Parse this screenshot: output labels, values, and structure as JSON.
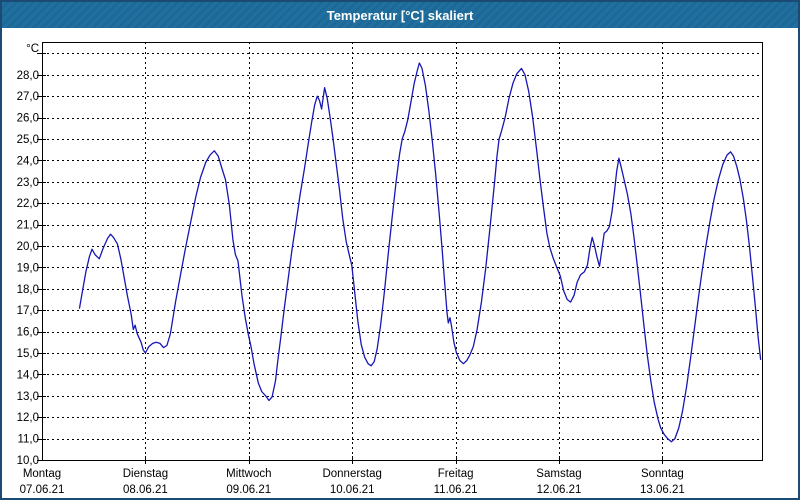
{
  "window": {
    "title": "Temperatur [°C] skaliert",
    "colors": {
      "title_bar": "#1e6b9d",
      "window_border": "#1b4a72",
      "background": "#ffffff",
      "grid": "#000000",
      "series_line": "#1717b5",
      "title_text": "#ffffff"
    }
  },
  "chart_data": {
    "type": "line",
    "title": "Temperatur [°C] skaliert",
    "ylabel": "°C",
    "ylim": [
      10,
      29.5
    ],
    "y_tick_step": 1.0,
    "y_tick_labels": [
      "28,0",
      "27,0",
      "26,0",
      "25,0",
      "24,0",
      "23,0",
      "22,0",
      "21,0",
      "20,0",
      "19,0",
      "18,0",
      "17,0",
      "16,0",
      "15,0",
      "14,0",
      "13,0",
      "12,0",
      "11,0",
      "10,0"
    ],
    "y_unlabeled_gridline": 29.0,
    "grid": "dashed",
    "legend_position": "none",
    "x_axis": {
      "days": [
        {
          "name": "Montag",
          "date": "07.06.21"
        },
        {
          "name": "Dienstag",
          "date": "08.06.21"
        },
        {
          "name": "Mittwoch",
          "date": "09.06.21"
        },
        {
          "name": "Donnerstag",
          "date": "10.06.21"
        },
        {
          "name": "Freitag",
          "date": "11.06.21"
        },
        {
          "name": "Samstag",
          "date": "12.06.21"
        },
        {
          "name": "Sonntag",
          "date": "13.06.21"
        }
      ]
    },
    "series": [
      {
        "name": "Temperatur",
        "color": "#1717b5",
        "points_day_hour_temp": [
          [
            0,
            8.7,
            17.1
          ],
          [
            0,
            9.4,
            17.9
          ],
          [
            0,
            10.2,
            18.8
          ],
          [
            0,
            11.0,
            19.5
          ],
          [
            0,
            11.6,
            19.85
          ],
          [
            0,
            12.3,
            19.6
          ],
          [
            0,
            13.3,
            19.4
          ],
          [
            0,
            14.2,
            19.9
          ],
          [
            0,
            15.2,
            20.35
          ],
          [
            0,
            15.9,
            20.55
          ],
          [
            0,
            16.6,
            20.4
          ],
          [
            0,
            17.5,
            20.1
          ],
          [
            0,
            18.3,
            19.4
          ],
          [
            0,
            19.0,
            18.6
          ],
          [
            0,
            19.8,
            17.7
          ],
          [
            0,
            20.7,
            16.8
          ],
          [
            0,
            21.2,
            16.1
          ],
          [
            0,
            21.6,
            16.3
          ],
          [
            0,
            22.1,
            15.9
          ],
          [
            0,
            23.0,
            15.5
          ],
          [
            0,
            23.5,
            15.15
          ],
          [
            1,
            0,
            15.0
          ],
          [
            1,
            0.8,
            15.3
          ],
          [
            1,
            1.7,
            15.45
          ],
          [
            1,
            2.5,
            15.5
          ],
          [
            1,
            3.4,
            15.45
          ],
          [
            1,
            4.2,
            15.25
          ],
          [
            1,
            5.0,
            15.35
          ],
          [
            1,
            5.8,
            15.9
          ],
          [
            1,
            7.0,
            17.4
          ],
          [
            1,
            8.2,
            18.7
          ],
          [
            1,
            9.3,
            19.9
          ],
          [
            1,
            10.5,
            21.1
          ],
          [
            1,
            11.7,
            22.3
          ],
          [
            1,
            12.8,
            23.2
          ],
          [
            1,
            14.0,
            23.9
          ],
          [
            1,
            15.0,
            24.25
          ],
          [
            1,
            16.0,
            24.45
          ],
          [
            1,
            16.9,
            24.2
          ],
          [
            1,
            17.8,
            23.6
          ],
          [
            1,
            18.6,
            23.1
          ],
          [
            1,
            19.5,
            21.9
          ],
          [
            1,
            20.3,
            20.3
          ],
          [
            1,
            20.9,
            19.6
          ],
          [
            1,
            21.5,
            19.3
          ],
          [
            1,
            22.4,
            17.7
          ],
          [
            1,
            23.2,
            16.6
          ],
          [
            1,
            23.9,
            15.85
          ],
          [
            2,
            0.5,
            15.3
          ],
          [
            2,
            1.2,
            14.5
          ],
          [
            2,
            2.2,
            13.6
          ],
          [
            2,
            3.0,
            13.2
          ],
          [
            2,
            3.9,
            13.0
          ],
          [
            2,
            4.7,
            12.78
          ],
          [
            2,
            5.4,
            12.95
          ],
          [
            2,
            6.2,
            13.7
          ],
          [
            2,
            6.7,
            14.6
          ],
          [
            2,
            7.4,
            15.7
          ],
          [
            2,
            8.3,
            17.2
          ],
          [
            2,
            9.1,
            18.4
          ],
          [
            2,
            10.0,
            19.8
          ],
          [
            2,
            10.9,
            21.0
          ],
          [
            2,
            11.9,
            22.4
          ],
          [
            2,
            12.9,
            23.6
          ],
          [
            2,
            13.8,
            24.8
          ],
          [
            2,
            14.6,
            25.8
          ],
          [
            2,
            15.3,
            26.6
          ],
          [
            2,
            15.9,
            27.0
          ],
          [
            2,
            16.4,
            26.8
          ],
          [
            2,
            16.9,
            26.4
          ],
          [
            2,
            17.6,
            27.4
          ],
          [
            2,
            18.2,
            26.9
          ],
          [
            2,
            18.8,
            26.1
          ],
          [
            2,
            19.5,
            25.1
          ],
          [
            2,
            20.2,
            24.0
          ],
          [
            2,
            21.0,
            22.7
          ],
          [
            2,
            21.8,
            21.3
          ],
          [
            2,
            22.6,
            20.2
          ],
          [
            2,
            23.3,
            19.6
          ],
          [
            2,
            23.9,
            19.1
          ],
          [
            3,
            0.6,
            17.8
          ],
          [
            3,
            1.3,
            16.5
          ],
          [
            3,
            2.1,
            15.4
          ],
          [
            3,
            2.9,
            14.8
          ],
          [
            3,
            3.7,
            14.5
          ],
          [
            3,
            4.4,
            14.4
          ],
          [
            3,
            5.1,
            14.6
          ],
          [
            3,
            5.8,
            15.2
          ],
          [
            3,
            6.6,
            16.3
          ],
          [
            3,
            7.5,
            17.9
          ],
          [
            3,
            8.4,
            19.7
          ],
          [
            3,
            9.3,
            21.4
          ],
          [
            3,
            10.2,
            23.0
          ],
          [
            3,
            11.0,
            24.3
          ],
          [
            3,
            11.6,
            25.0
          ],
          [
            3,
            12.2,
            25.35
          ],
          [
            3,
            12.9,
            25.9
          ],
          [
            3,
            13.7,
            26.8
          ],
          [
            3,
            14.4,
            27.6
          ],
          [
            3,
            15.1,
            28.2
          ],
          [
            3,
            15.6,
            28.55
          ],
          [
            3,
            16.2,
            28.3
          ],
          [
            3,
            17.0,
            27.5
          ],
          [
            3,
            17.8,
            26.3
          ],
          [
            3,
            18.6,
            24.9
          ],
          [
            3,
            19.4,
            23.3
          ],
          [
            3,
            20.2,
            21.5
          ],
          [
            3,
            20.9,
            19.8
          ],
          [
            3,
            21.5,
            18.2
          ],
          [
            3,
            22.0,
            16.9
          ],
          [
            3,
            22.3,
            16.4
          ],
          [
            3,
            22.7,
            16.65
          ],
          [
            3,
            23.1,
            16.2
          ],
          [
            3,
            23.6,
            15.5
          ],
          [
            4,
            0.2,
            15.0
          ],
          [
            4,
            1.0,
            14.65
          ],
          [
            4,
            1.8,
            14.5
          ],
          [
            4,
            2.6,
            14.65
          ],
          [
            4,
            3.3,
            14.9
          ],
          [
            4,
            4.1,
            15.3
          ],
          [
            4,
            5.0,
            16.1
          ],
          [
            4,
            6.0,
            17.4
          ],
          [
            4,
            7.0,
            19.0
          ],
          [
            4,
            8.0,
            20.9
          ],
          [
            4,
            9.0,
            22.9
          ],
          [
            4,
            9.6,
            24.2
          ],
          [
            4,
            10.1,
            25.0
          ],
          [
            4,
            10.7,
            25.4
          ],
          [
            4,
            11.5,
            26.0
          ],
          [
            4,
            12.4,
            26.9
          ],
          [
            4,
            13.3,
            27.6
          ],
          [
            4,
            14.2,
            28.05
          ],
          [
            4,
            15.3,
            28.3
          ],
          [
            4,
            16.1,
            28.0
          ],
          [
            4,
            17.0,
            27.2
          ],
          [
            4,
            17.9,
            26.0
          ],
          [
            4,
            18.8,
            24.5
          ],
          [
            4,
            19.6,
            23.1
          ],
          [
            4,
            20.4,
            21.8
          ],
          [
            4,
            21.2,
            20.6
          ],
          [
            4,
            21.9,
            19.9
          ],
          [
            4,
            22.7,
            19.4
          ],
          [
            4,
            23.5,
            19.0
          ],
          [
            5,
            0.3,
            18.6
          ],
          [
            5,
            1.1,
            17.9
          ],
          [
            5,
            1.9,
            17.5
          ],
          [
            5,
            2.7,
            17.38
          ],
          [
            5,
            3.5,
            17.7
          ],
          [
            5,
            4.2,
            18.3
          ],
          [
            5,
            5.0,
            18.65
          ],
          [
            5,
            5.9,
            18.8
          ],
          [
            5,
            6.6,
            19.1
          ],
          [
            5,
            7.2,
            19.9
          ],
          [
            5,
            7.7,
            20.4
          ],
          [
            5,
            8.2,
            20.05
          ],
          [
            5,
            8.8,
            19.5
          ],
          [
            5,
            9.4,
            19.05
          ],
          [
            5,
            10.0,
            19.9
          ],
          [
            5,
            10.5,
            20.6
          ],
          [
            5,
            11.1,
            20.7
          ],
          [
            5,
            11.7,
            20.9
          ],
          [
            5,
            12.3,
            21.6
          ],
          [
            5,
            12.9,
            22.6
          ],
          [
            5,
            13.4,
            23.5
          ],
          [
            5,
            13.9,
            24.1
          ],
          [
            5,
            14.3,
            23.8
          ],
          [
            5,
            15.0,
            23.2
          ],
          [
            5,
            15.9,
            22.4
          ],
          [
            5,
            16.7,
            21.5
          ],
          [
            5,
            17.4,
            20.4
          ],
          [
            5,
            18.1,
            19.2
          ],
          [
            5,
            18.9,
            17.8
          ],
          [
            5,
            19.7,
            16.3
          ],
          [
            5,
            20.5,
            14.9
          ],
          [
            5,
            21.3,
            13.7
          ],
          [
            5,
            22.1,
            12.7
          ],
          [
            5,
            23.0,
            11.9
          ],
          [
            5,
            23.6,
            11.5
          ],
          [
            6,
            0.4,
            11.2
          ],
          [
            6,
            1.2,
            11.0
          ],
          [
            6,
            2.1,
            10.85
          ],
          [
            6,
            2.9,
            11.0
          ],
          [
            6,
            3.8,
            11.5
          ],
          [
            6,
            4.7,
            12.3
          ],
          [
            6,
            5.6,
            13.4
          ],
          [
            6,
            6.5,
            14.7
          ],
          [
            6,
            7.4,
            16.1
          ],
          [
            6,
            8.3,
            17.5
          ],
          [
            6,
            9.2,
            18.8
          ],
          [
            6,
            10.1,
            20.0
          ],
          [
            6,
            11.0,
            21.1
          ],
          [
            6,
            12.0,
            22.2
          ],
          [
            6,
            13.0,
            23.1
          ],
          [
            6,
            14.0,
            23.8
          ],
          [
            6,
            15.0,
            24.25
          ],
          [
            6,
            15.8,
            24.4
          ],
          [
            6,
            16.5,
            24.2
          ],
          [
            6,
            17.3,
            23.7
          ],
          [
            6,
            18.0,
            23.1
          ],
          [
            6,
            18.8,
            22.2
          ],
          [
            6,
            19.5,
            21.2
          ],
          [
            6,
            20.2,
            20.0
          ],
          [
            6,
            20.9,
            18.6
          ],
          [
            6,
            21.6,
            17.1
          ],
          [
            6,
            22.2,
            15.8
          ],
          [
            6,
            22.8,
            14.7
          ]
        ]
      }
    ]
  }
}
